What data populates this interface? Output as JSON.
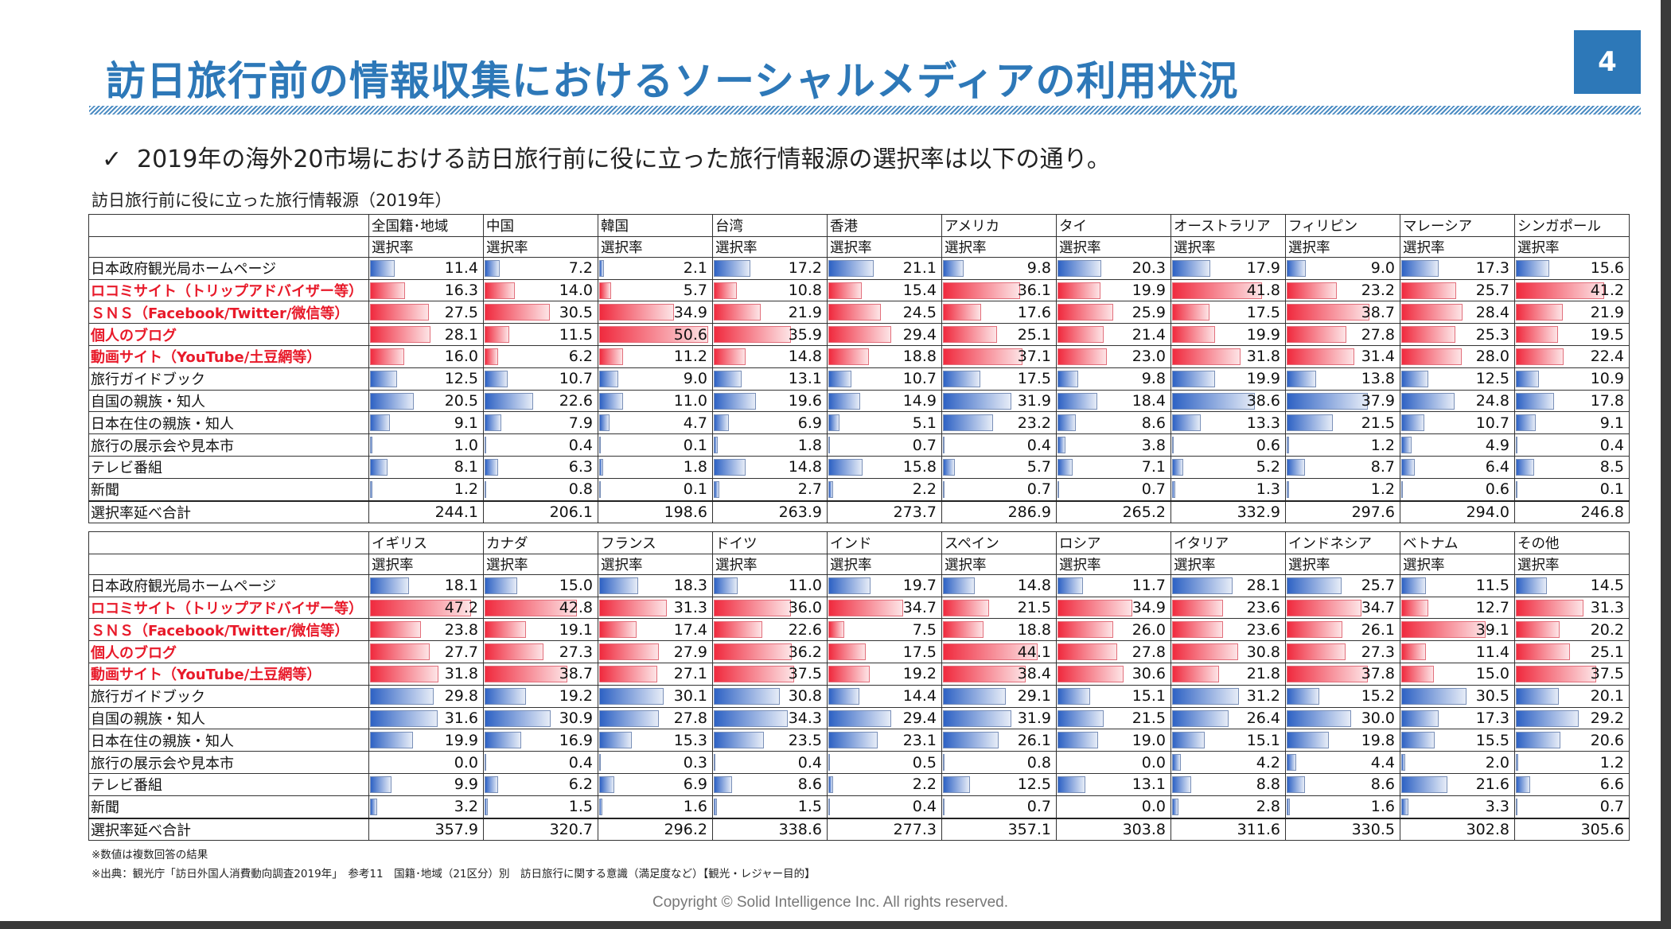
{
  "title": "訪日旅行前の情報収集におけるソーシャルメディアの利用状況",
  "page_number": "4",
  "bullet": "2019年の海外20市場における訪日旅行前に役に立った旅行情報源の選択率は以下の通り。",
  "caption": "訪日旅行前に役に立った旅行情報源（2019年）",
  "metric_label": "選択率",
  "rows": [
    {
      "label": "日本政府観光局ホームページ",
      "highlight": false
    },
    {
      "label": "ロコミサイト（トリップアドバイザー等）",
      "highlight": true
    },
    {
      "label": "ＳＮＳ（Facebook/Twitter/微信等）",
      "highlight": true
    },
    {
      "label": "個人のブログ",
      "highlight": true
    },
    {
      "label": "動画サイト（YouTube/土豆網等）",
      "highlight": true
    },
    {
      "label": "旅行ガイドブック",
      "highlight": false
    },
    {
      "label": "自国の親族・知人",
      "highlight": false
    },
    {
      "label": "日本在住の親族・知人",
      "highlight": false
    },
    {
      "label": "旅行の展示会や見本市",
      "highlight": false
    },
    {
      "label": "テレビ番組",
      "highlight": false
    },
    {
      "label": "新聞",
      "highlight": false
    }
  ],
  "total_label": "選択率延べ合計",
  "tables": [
    {
      "markets": [
        "全国籍･地域",
        "中国",
        "韓国",
        "台湾",
        "香港",
        "アメリカ",
        "タイ",
        "オーストラリア",
        "フィリピン",
        "マレーシア",
        "シンガポール"
      ],
      "values": [
        [
          11.4,
          7.2,
          2.1,
          17.2,
          21.1,
          9.8,
          20.3,
          17.9,
          9.0,
          17.3,
          15.6
        ],
        [
          16.3,
          14.0,
          5.7,
          10.8,
          15.4,
          36.1,
          19.9,
          41.8,
          23.2,
          25.7,
          41.2
        ],
        [
          27.5,
          30.5,
          34.9,
          21.9,
          24.5,
          17.6,
          25.9,
          17.5,
          38.7,
          28.4,
          21.9
        ],
        [
          28.1,
          11.5,
          50.6,
          35.9,
          29.4,
          25.1,
          21.4,
          19.9,
          27.8,
          25.3,
          19.5
        ],
        [
          16.0,
          6.2,
          11.2,
          14.8,
          18.8,
          37.1,
          23.0,
          31.8,
          31.4,
          28.0,
          22.4
        ],
        [
          12.5,
          10.7,
          9.0,
          13.1,
          10.7,
          17.5,
          9.8,
          19.9,
          13.8,
          12.5,
          10.9
        ],
        [
          20.5,
          22.6,
          11.0,
          19.6,
          14.9,
          31.9,
          18.4,
          38.6,
          37.9,
          24.8,
          17.8
        ],
        [
          9.1,
          7.9,
          4.7,
          6.9,
          5.1,
          23.2,
          8.6,
          13.3,
          21.5,
          10.7,
          9.1
        ],
        [
          1.0,
          0.4,
          0.1,
          1.8,
          0.7,
          0.4,
          3.8,
          0.6,
          1.2,
          4.9,
          0.4
        ],
        [
          8.1,
          6.3,
          1.8,
          14.8,
          15.8,
          5.7,
          7.1,
          5.2,
          8.7,
          6.4,
          8.5
        ],
        [
          1.2,
          0.8,
          0.1,
          2.7,
          2.2,
          0.7,
          0.7,
          1.3,
          1.2,
          0.6,
          0.1
        ]
      ],
      "totals": [
        "244.1",
        "206.1",
        "198.6",
        "263.9",
        "273.7",
        "286.9",
        "265.2",
        "332.9",
        "297.6",
        "294.0",
        "246.8"
      ]
    },
    {
      "markets": [
        "イギリス",
        "カナダ",
        "フランス",
        "ドイツ",
        "インド",
        "スペイン",
        "ロシア",
        "イタリア",
        "インドネシア",
        "ベトナム",
        "その他"
      ],
      "values": [
        [
          18.1,
          15.0,
          18.3,
          11.0,
          19.7,
          14.8,
          11.7,
          28.1,
          25.7,
          11.5,
          14.5
        ],
        [
          47.2,
          42.8,
          31.3,
          36.0,
          34.7,
          21.5,
          34.9,
          23.6,
          34.7,
          12.7,
          31.3
        ],
        [
          23.8,
          19.1,
          17.4,
          22.6,
          7.5,
          18.8,
          26.0,
          23.6,
          26.1,
          39.1,
          20.2
        ],
        [
          27.7,
          27.3,
          27.9,
          36.2,
          17.5,
          44.1,
          27.8,
          30.8,
          27.3,
          11.4,
          25.1
        ],
        [
          31.8,
          38.7,
          27.1,
          37.5,
          19.2,
          38.4,
          30.6,
          21.8,
          37.8,
          15.0,
          37.5
        ],
        [
          29.8,
          19.2,
          30.1,
          30.8,
          14.4,
          29.1,
          15.1,
          31.2,
          15.2,
          30.5,
          20.1
        ],
        [
          31.6,
          30.9,
          27.8,
          34.3,
          29.4,
          31.9,
          21.5,
          26.4,
          30.0,
          17.3,
          29.2
        ],
        [
          19.9,
          16.9,
          15.3,
          23.5,
          23.1,
          26.1,
          19.0,
          15.1,
          19.8,
          15.5,
          20.6
        ],
        [
          0.0,
          0.4,
          0.3,
          0.4,
          0.5,
          0.8,
          0.0,
          4.2,
          4.4,
          2.0,
          1.2
        ],
        [
          9.9,
          6.2,
          6.9,
          8.6,
          2.2,
          12.5,
          13.1,
          8.8,
          8.6,
          21.6,
          6.6
        ],
        [
          3.2,
          1.5,
          1.6,
          1.5,
          0.4,
          0.7,
          0.0,
          2.8,
          1.6,
          3.3,
          0.7
        ]
      ],
      "totals": [
        "357.9",
        "320.7",
        "296.2",
        "338.6",
        "277.3",
        "357.1",
        "303.8",
        "311.6",
        "330.5",
        "302.8",
        "305.6"
      ]
    }
  ],
  "notes": [
    "※数値は複数回答の結果",
    "※出典：観光庁「訪日外国人消費動向調査2019年」　参考11　国籍･地域（21区分）別　訪日旅行に関する意識（満足度など）【観光・レジャー目的】"
  ],
  "copyright": "Copyright © Solid Intelligence Inc. All rights reserved.",
  "colors": {
    "accent": "#2d78b8",
    "highlight_text": "#e81a2a",
    "bar_blue": "#2e62c4",
    "bar_red": "#f02a3e"
  }
}
